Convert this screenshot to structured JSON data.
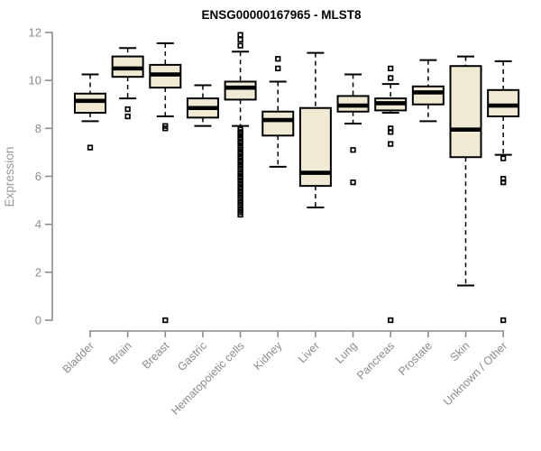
{
  "chart_data": {
    "type": "boxplot",
    "title": "ENSG00000167965 - MLST8",
    "ylabel": "Expression",
    "xlabel": "",
    "ylim": [
      0,
      12
    ],
    "y_ticks": [
      0,
      2,
      4,
      6,
      8,
      10,
      12
    ],
    "grid": false,
    "legend": false,
    "colors": {
      "box_fill": "#F0EAD4",
      "box_border": "#000000",
      "median": "#000000",
      "whisker": "#000000",
      "axis": "#8B8B8B",
      "tick_label": "#8B8B8B",
      "y_title": "#9A9A9A",
      "title": "#000000",
      "background": "#FFFFFF"
    },
    "categories": [
      "Bladder",
      "Brain",
      "Breast",
      "Gastric",
      "Hematopoietic cells",
      "Kidney",
      "Liver",
      "Lung",
      "Pancreas",
      "Prostate",
      "Skin",
      "Unknown / Other"
    ],
    "series": [
      {
        "label": "Bladder",
        "whisker_low": 8.3,
        "q1": 8.65,
        "median": 9.15,
        "q3": 9.45,
        "whisker_high": 10.25,
        "outliers": [
          7.2
        ]
      },
      {
        "label": "Brain",
        "whisker_low": 9.25,
        "q1": 10.15,
        "median": 10.5,
        "q3": 11.0,
        "whisker_high": 11.35,
        "outliers": [
          8.8,
          8.5
        ]
      },
      {
        "label": "Breast",
        "whisker_low": 8.5,
        "q1": 9.7,
        "median": 10.25,
        "q3": 10.65,
        "whisker_high": 11.55,
        "outliers": [
          8.1,
          8.0,
          0
        ]
      },
      {
        "label": "Gastric",
        "whisker_low": 8.1,
        "q1": 8.45,
        "median": 8.85,
        "q3": 9.25,
        "whisker_high": 9.8,
        "outliers": []
      },
      {
        "label": "Hematopoietic cells",
        "whisker_low": 8.1,
        "q1": 9.2,
        "median": 9.7,
        "q3": 9.95,
        "whisker_high": 11.2,
        "outliers": [
          11.9,
          11.7,
          11.45,
          7.95,
          7.85,
          7.8,
          7.7,
          7.6,
          7.55,
          7.45,
          7.4,
          7.3,
          7.2,
          7.1,
          7.0,
          6.95,
          6.85,
          6.75,
          6.65,
          6.6,
          6.5,
          6.4,
          6.3,
          6.2,
          6.1,
          6.0,
          5.95,
          5.85,
          5.75,
          5.65,
          5.55,
          5.5,
          5.4,
          5.3,
          5.2,
          5.1,
          5.0,
          4.9,
          4.8,
          4.7,
          4.6,
          4.5,
          4.4
        ]
      },
      {
        "label": "Kidney",
        "whisker_low": 6.4,
        "q1": 7.7,
        "median": 8.35,
        "q3": 8.7,
        "whisker_high": 9.95,
        "outliers": [
          10.9,
          10.5
        ]
      },
      {
        "label": "Liver",
        "whisker_low": 4.7,
        "q1": 5.6,
        "median": 6.15,
        "q3": 8.85,
        "whisker_high": 11.15,
        "outliers": []
      },
      {
        "label": "Lung",
        "whisker_low": 8.2,
        "q1": 8.7,
        "median": 8.95,
        "q3": 9.35,
        "whisker_high": 10.25,
        "outliers": [
          7.1,
          5.75
        ]
      },
      {
        "label": "Pancreas",
        "whisker_low": 8.65,
        "q1": 8.75,
        "median": 9.05,
        "q3": 9.25,
        "whisker_high": 9.85,
        "outliers": [
          10.5,
          10.1,
          8.0,
          7.85,
          7.35,
          0
        ]
      },
      {
        "label": "Prostate",
        "whisker_low": 8.3,
        "q1": 9.0,
        "median": 9.5,
        "q3": 9.75,
        "whisker_high": 10.85,
        "outliers": []
      },
      {
        "label": "Skin",
        "whisker_low": 1.45,
        "q1": 6.8,
        "median": 7.95,
        "q3": 10.6,
        "whisker_high": 11.0,
        "outliers": []
      },
      {
        "label": "Unknown / Other",
        "whisker_low": 6.9,
        "q1": 8.5,
        "median": 8.95,
        "q3": 9.6,
        "whisker_high": 10.8,
        "outliers": [
          6.75,
          5.9,
          5.75,
          0
        ]
      }
    ]
  }
}
